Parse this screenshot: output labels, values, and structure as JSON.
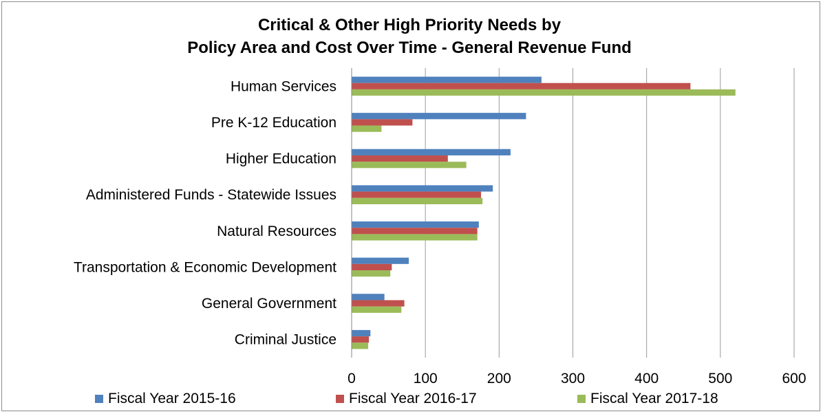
{
  "chart_data": {
    "type": "bar",
    "orientation": "horizontal",
    "title_line1": "Critical & Other High Priority Needs by",
    "title_line2": "Policy Area and Cost Over Time - General Revenue Fund",
    "categories": [
      "Human Services",
      "Pre K-12 Education",
      "Higher Education",
      "Administered Funds - Statewide Issues",
      "Natural Resources",
      "Transportation & Economic Development",
      "General Government",
      "Criminal Justice"
    ],
    "series": [
      {
        "name": "Fiscal Year 2015-16",
        "color": "#4f81bd",
        "values": [
          257,
          236,
          215,
          191,
          172,
          77,
          44,
          25
        ]
      },
      {
        "name": "Fiscal Year 2016-17",
        "color": "#c0504d",
        "values": [
          459,
          82,
          130,
          175,
          170,
          54,
          71,
          23
        ]
      },
      {
        "name": "Fiscal Year 2017-18",
        "color": "#9bbb59",
        "values": [
          520,
          40,
          155,
          177,
          170,
          52,
          67,
          22
        ]
      }
    ],
    "xlim": [
      0,
      600
    ],
    "xticks": [
      0,
      100,
      200,
      300,
      400,
      500,
      600
    ],
    "grid": true,
    "legend_position": "bottom"
  }
}
